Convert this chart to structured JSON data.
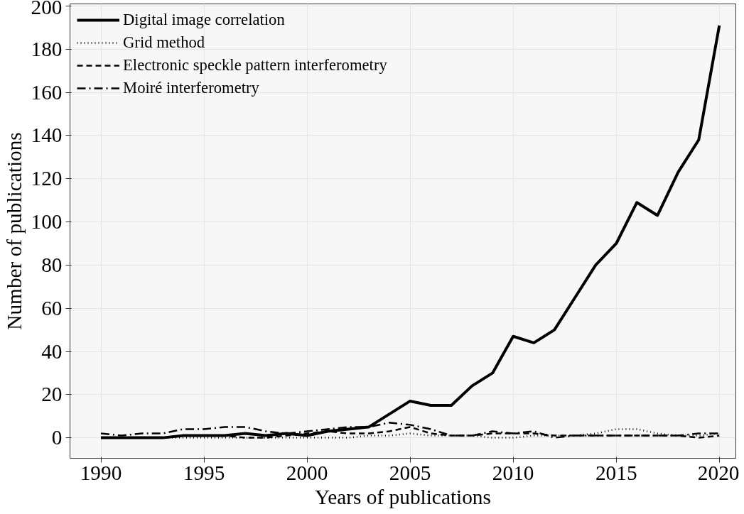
{
  "chart_data": {
    "type": "line",
    "xlabel": "Years of publications",
    "ylabel": "Number of publications",
    "x": [
      1990,
      1991,
      1992,
      1993,
      1994,
      1995,
      1996,
      1997,
      1998,
      1999,
      2000,
      2001,
      2002,
      2003,
      2004,
      2005,
      2006,
      2007,
      2008,
      2009,
      2010,
      2011,
      2012,
      2013,
      2014,
      2015,
      2016,
      2017,
      2018,
      2019,
      2020
    ],
    "series": [
      {
        "name": "Digital image correlation",
        "color": "#000000",
        "line_style": "solid",
        "values": [
          0,
          0,
          0,
          0,
          1,
          1,
          1,
          2,
          1,
          2,
          1,
          3,
          4,
          5,
          11,
          17,
          15,
          15,
          24,
          30,
          47,
          44,
          50,
          65,
          80,
          90,
          109,
          103,
          123,
          138,
          191
        ]
      },
      {
        "name": "Grid method",
        "color": "#000000",
        "line_style": "dotted",
        "values": [
          0,
          0,
          0,
          0,
          0,
          0,
          0,
          0,
          0,
          0,
          0,
          0,
          0,
          1,
          1,
          2,
          1,
          1,
          1,
          0,
          0,
          1,
          1,
          1,
          2,
          4,
          4,
          2,
          1,
          1,
          2
        ]
      },
      {
        "name": "Electronic speckle pattern interferometry",
        "color": "#000000",
        "line_style": "dashed",
        "values": [
          0,
          0,
          0,
          0,
          1,
          1,
          1,
          0,
          0,
          1,
          2,
          3,
          2,
          2,
          3,
          5,
          2,
          1,
          1,
          2,
          2,
          2,
          1,
          1,
          1,
          1,
          1,
          1,
          1,
          0,
          1
        ]
      },
      {
        "name": "Moiré interferometry",
        "color": "#000000",
        "line_style": "dashdot",
        "values": [
          2,
          1,
          2,
          2,
          4,
          4,
          5,
          5,
          3,
          2,
          3,
          4,
          5,
          5,
          7,
          6,
          4,
          1,
          1,
          3,
          2,
          3,
          0,
          1,
          1,
          1,
          1,
          1,
          1,
          2,
          2
        ]
      }
    ],
    "xlim": [
      1988.5,
      2020.8
    ],
    "ylim": [
      -9.5,
      201
    ],
    "xticks": [
      1990,
      1995,
      2000,
      2005,
      2010,
      2015,
      2020
    ],
    "yticks": [
      0,
      20,
      40,
      60,
      80,
      100,
      120,
      140,
      160,
      180,
      200
    ],
    "grid": true,
    "legend": "top left"
  }
}
